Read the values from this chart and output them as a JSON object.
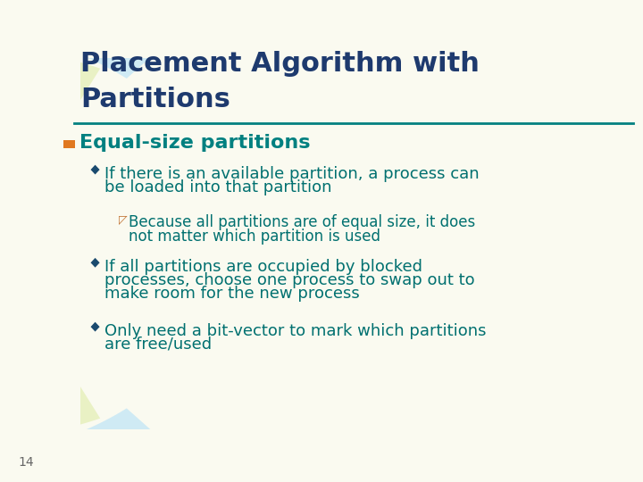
{
  "title_line1": "Placement Algorithm with",
  "title_line2": "Partitions",
  "title_color": "#1e3a6e",
  "title_fontsize": 22,
  "background_color": "#fafaf0",
  "slide_number": "14",
  "bullet1_text": "Equal-size partitions",
  "bullet1_color": "#008080",
  "bullet1_fontsize": 16,
  "bullet1_marker_color": "#e07820",
  "sub_bullet_color": "#007070",
  "sub_bullet_fontsize": 13,
  "sub_sub_bullet_color": "#007070",
  "sub_sub_bullet_fontsize": 12,
  "separator_color": "#008080",
  "arc_color_blue": "#c8e8f5",
  "arc_color_yellow": "#e8f0c0",
  "sub_bullet_marker_color": "#1a4a6e",
  "sub_bullets": [
    [
      "If there is an available partition, a process can",
      "be loaded into that partition"
    ],
    [
      "If all partitions are occupied by blocked",
      "processes, choose one process to swap out to",
      "make room for the new process"
    ],
    [
      "Only need a bit-vector to mark which partitions",
      "are free/used"
    ]
  ],
  "sub_sub_bullets": [
    [
      "◸Because all partitions are of equal size, it does",
      "     not matter which partition is used"
    ]
  ]
}
